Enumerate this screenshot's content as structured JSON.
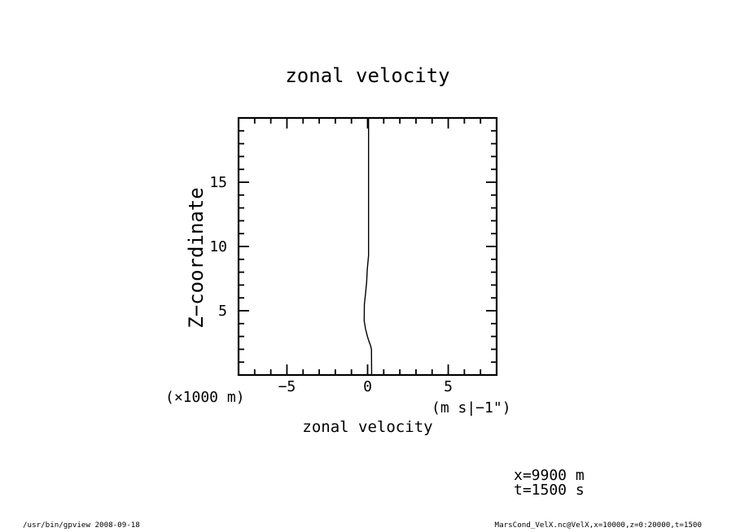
{
  "window": {
    "background": "#ffffff",
    "foreground": "#000000"
  },
  "chart_data": {
    "type": "line",
    "title": "zonal velocity",
    "xlabel": "zonal velocity",
    "ylabel": "Z−coordinate",
    "x_units": "(m  s|−1\")",
    "y_units": "(×1000 m)",
    "xlim": [
      -8,
      8
    ],
    "ylim": [
      0,
      20
    ],
    "grid": false,
    "legend": "none",
    "x_major_ticks": [
      {
        "value": -5,
        "label": "−5"
      },
      {
        "value": 0,
        "label": "0"
      },
      {
        "value": 5,
        "label": "5"
      }
    ],
    "x_minor_step": 1,
    "y_major_ticks": [
      {
        "value": 5,
        "label": "5"
      },
      {
        "value": 10,
        "label": "10"
      },
      {
        "value": 15,
        "label": "15"
      }
    ],
    "y_minor_step": 1,
    "line_color": "#000000",
    "series": [
      {
        "name": "VelX",
        "points": [
          [
            0.06,
            20.0
          ],
          [
            0.06,
            9.3
          ],
          [
            -0.02,
            8.2
          ],
          [
            -0.06,
            7.2
          ],
          [
            -0.13,
            6.3
          ],
          [
            -0.2,
            5.5
          ],
          [
            -0.21,
            4.2
          ],
          [
            -0.13,
            3.6
          ],
          [
            -0.01,
            3.0
          ],
          [
            0.09,
            2.6
          ],
          [
            0.18,
            2.3
          ],
          [
            0.24,
            2.0
          ],
          [
            0.25,
            0.3
          ],
          [
            0.25,
            0.0
          ]
        ]
      }
    ]
  },
  "annotations": {
    "line1": "x=9900 m",
    "line2": "t=1500 s"
  },
  "footer": {
    "left": "/usr/bin/gpview  2008-09-18",
    "right": "MarsCond_VelX.nc@VelX,x=10000,z=0:20000,t=1500"
  }
}
